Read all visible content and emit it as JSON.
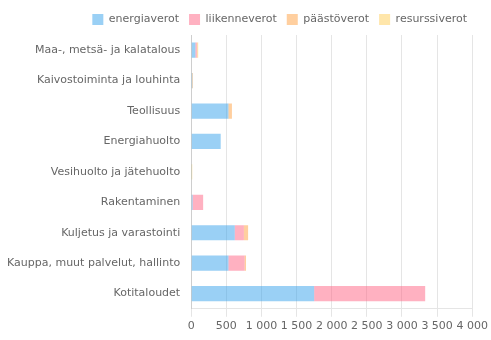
{
  "chart_data": {
    "type": "bar",
    "orientation": "horizontal",
    "stacked": true,
    "categories": [
      "Kotitaloudet",
      "Kauppa, muut palvelut, hallinto",
      "Kuljetus ja varastointi",
      "Rakentaminen",
      "Vesihuolto ja jätehuolto",
      "Energiahuolto",
      "Teollisuus",
      "Kaivostoiminta ja louhinta",
      "Maa-, metsä- ja kalatalous"
    ],
    "series": [
      {
        "name": "energiaverot",
        "values": [
          1750,
          530,
          620,
          20,
          5,
          420,
          530,
          15,
          60
        ]
      },
      {
        "name": "liikenneverot",
        "values": [
          1580,
          230,
          130,
          150,
          0,
          0,
          0,
          0,
          20
        ]
      },
      {
        "name": "päästöverot",
        "values": [
          0,
          20,
          60,
          0,
          0,
          0,
          50,
          10,
          10
        ]
      },
      {
        "name": "resurssiverot",
        "values": [
          0,
          0,
          0,
          0,
          10,
          0,
          0,
          0,
          10
        ]
      }
    ],
    "xlim": [
      0,
      4000
    ],
    "xticks": [
      0,
      500,
      {
        "value": 1000,
        "label": "1 000"
      },
      {
        "value": 1500,
        "label": "1 500"
      },
      {
        "value": 2000,
        "label": "2 000"
      },
      {
        "value": 2500,
        "label": "2 500"
      },
      {
        "value": 3000,
        "label": "3 000"
      },
      {
        "value": 3500,
        "label": "3 500"
      },
      {
        "value": 4000,
        "label": "4 000"
      }
    ],
    "grid": true,
    "legend": "upper right"
  }
}
